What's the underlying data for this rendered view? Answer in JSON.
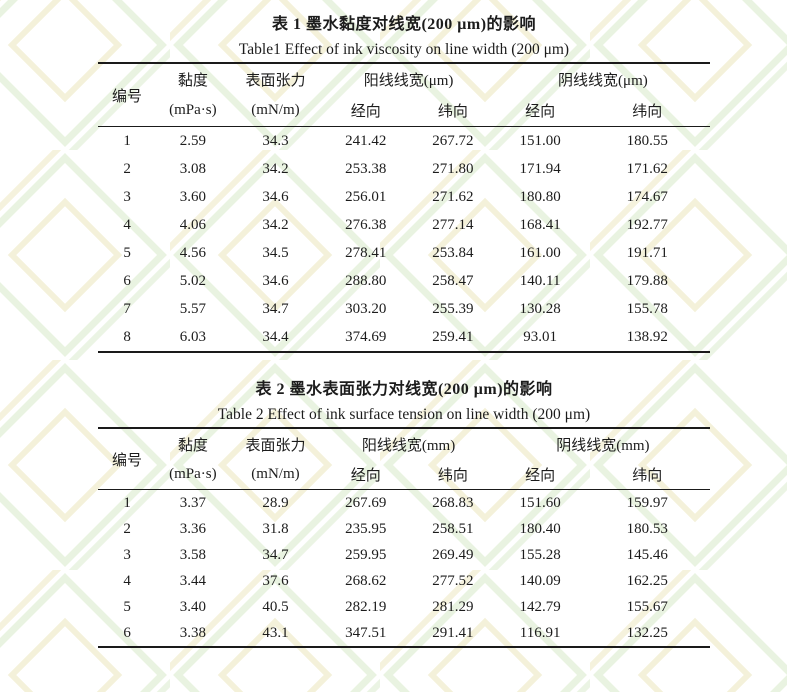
{
  "watermark": {
    "green": "#d3e7c3",
    "yellow": "#e9e3b5"
  },
  "tables": [
    {
      "title_zh": "表 1 墨水黏度对线宽(200 μm)的影响",
      "title_en": "Table1 Effect of ink viscosity on line width (200 μm)",
      "headers": {
        "id": "编号",
        "viscosity": "黏度",
        "viscosity_unit": "(mPa·s)",
        "surface_tension": "表面张力",
        "surface_tension_unit": "(mN/m)",
        "positive_line_width": "阳线线宽(μm)",
        "negative_line_width": "阴线线宽(μm)",
        "warp": "经向",
        "weft": "纬向"
      },
      "rows": [
        [
          "1",
          "2.59",
          "34.3",
          "241.42",
          "267.72",
          "151.00",
          "180.55"
        ],
        [
          "2",
          "3.08",
          "34.2",
          "253.38",
          "271.80",
          "171.94",
          "171.62"
        ],
        [
          "3",
          "3.60",
          "34.6",
          "256.01",
          "271.62",
          "180.80",
          "174.67"
        ],
        [
          "4",
          "4.06",
          "34.2",
          "276.38",
          "277.14",
          "168.41",
          "192.77"
        ],
        [
          "5",
          "4.56",
          "34.5",
          "278.41",
          "253.84",
          "161.00",
          "191.71"
        ],
        [
          "6",
          "5.02",
          "34.6",
          "288.80",
          "258.47",
          "140.11",
          "179.88"
        ],
        [
          "7",
          "5.57",
          "34.7",
          "303.20",
          "255.39",
          "130.28",
          "155.78"
        ],
        [
          "8",
          "6.03",
          "34.4",
          "374.69",
          "259.41",
          "93.01",
          "138.92"
        ]
      ]
    },
    {
      "title_zh": "表 2 墨水表面张力对线宽(200 μm)的影响",
      "title_en": "Table 2 Effect of ink surface tension on line width (200 μm)",
      "headers": {
        "id": "编号",
        "viscosity": "黏度",
        "viscosity_unit": "(mPa·s)",
        "surface_tension": "表面张力",
        "surface_tension_unit": "(mN/m)",
        "positive_line_width": "阳线线宽(mm)",
        "negative_line_width": "阴线线宽(mm)",
        "warp": "经向",
        "weft": "纬向"
      },
      "rows": [
        [
          "1",
          "3.37",
          "28.9",
          "267.69",
          "268.83",
          "151.60",
          "159.97"
        ],
        [
          "2",
          "3.36",
          "31.8",
          "235.95",
          "258.51",
          "180.40",
          "180.53"
        ],
        [
          "3",
          "3.58",
          "34.7",
          "259.95",
          "269.49",
          "155.28",
          "145.46"
        ],
        [
          "4",
          "3.44",
          "37.6",
          "268.62",
          "277.52",
          "140.09",
          "162.25"
        ],
        [
          "5",
          "3.40",
          "40.5",
          "282.19",
          "281.29",
          "142.79",
          "155.67"
        ],
        [
          "6",
          "3.38",
          "43.1",
          "347.51",
          "291.41",
          "116.91",
          "132.25"
        ]
      ]
    }
  ]
}
